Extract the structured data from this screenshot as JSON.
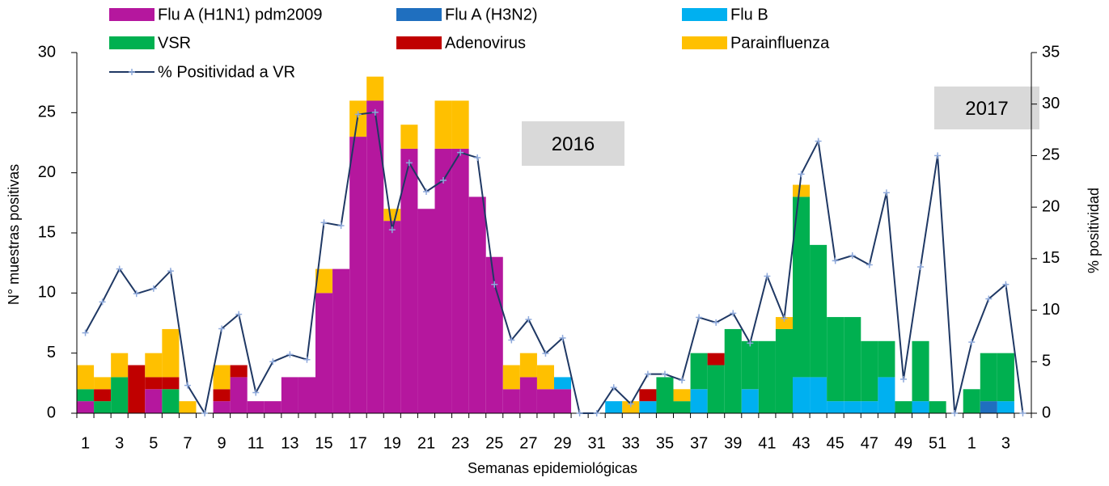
{
  "chart_data": {
    "type": "bar",
    "stacked": true,
    "x_label": "Semanas epidemiológicas",
    "y_label": "N° muestras positivas",
    "y2_label": "% positividad",
    "categories": [
      "1",
      null,
      "3",
      null,
      "5",
      null,
      "7",
      null,
      "9",
      null,
      "11",
      null,
      "13",
      null,
      "15",
      null,
      "17",
      null,
      "19",
      null,
      "21",
      null,
      "23",
      null,
      "25",
      null,
      "27",
      null,
      "29",
      null,
      "31",
      null,
      "33",
      null,
      "35",
      null,
      "37",
      null,
      "39",
      null,
      "41",
      null,
      "43",
      null,
      "45",
      null,
      "47",
      null,
      "49",
      null,
      "51",
      null,
      "1",
      null,
      "3",
      null
    ],
    "series": [
      {
        "name": "Flu A (H1N1) pdm2009",
        "color": "#B5179E",
        "values": [
          1,
          0,
          0,
          0,
          2,
          0,
          0,
          0,
          1,
          3,
          1,
          1,
          3,
          3,
          10,
          12,
          23,
          26,
          16,
          22,
          17,
          22,
          22,
          18,
          13,
          2,
          3,
          2,
          2,
          0,
          0,
          0,
          0,
          0,
          0,
          0,
          0,
          0,
          0,
          0,
          0,
          0,
          0,
          0,
          0,
          0,
          0,
          0,
          0,
          0,
          0,
          0,
          0,
          0,
          0,
          0
        ]
      },
      {
        "name": "Flu A (H3N2)",
        "color": "#1F6FBF",
        "values": [
          0,
          0,
          0,
          0,
          0,
          0,
          0,
          0,
          0,
          0,
          0,
          0,
          0,
          0,
          0,
          0,
          0,
          0,
          0,
          0,
          0,
          0,
          0,
          0,
          0,
          0,
          0,
          0,
          0,
          0,
          0,
          0,
          0,
          0,
          0,
          0,
          0,
          0,
          0,
          0,
          0,
          0,
          0,
          0,
          0,
          0,
          0,
          0,
          0,
          0,
          0,
          0,
          0,
          1,
          0,
          0
        ]
      },
      {
        "name": "Flu B",
        "color": "#00B0F0",
        "values": [
          0,
          0,
          0,
          0,
          0,
          0,
          0,
          0,
          0,
          0,
          0,
          0,
          0,
          0,
          0,
          0,
          0,
          0,
          0,
          0,
          0,
          0,
          0,
          0,
          0,
          0,
          0,
          0,
          1,
          0,
          0,
          1,
          0,
          1,
          0,
          0,
          2,
          0,
          0,
          2,
          0,
          0,
          3,
          3,
          1,
          1,
          1,
          3,
          0,
          1,
          0,
          0,
          0,
          0,
          1,
          0
        ]
      },
      {
        "name": "VSR",
        "color": "#00B050",
        "values": [
          1,
          1,
          3,
          0,
          0,
          2,
          0,
          0,
          0,
          0,
          0,
          0,
          0,
          0,
          0,
          0,
          0,
          0,
          0,
          0,
          0,
          0,
          0,
          0,
          0,
          0,
          0,
          0,
          0,
          0,
          0,
          0,
          0,
          0,
          3,
          1,
          3,
          4,
          7,
          4,
          6,
          7,
          15,
          11,
          7,
          7,
          5,
          3,
          1,
          5,
          1,
          0,
          2,
          4,
          4,
          0
        ]
      },
      {
        "name": "Adenovirus",
        "color": "#C00000",
        "values": [
          0,
          1,
          0,
          4,
          1,
          1,
          0,
          0,
          1,
          1,
          0,
          0,
          0,
          0,
          0,
          0,
          0,
          0,
          0,
          0,
          0,
          0,
          0,
          0,
          0,
          0,
          0,
          0,
          0,
          0,
          0,
          0,
          0,
          1,
          0,
          0,
          0,
          1,
          0,
          0,
          0,
          0,
          0,
          0,
          0,
          0,
          0,
          0,
          0,
          0,
          0,
          0,
          0,
          0,
          0,
          0
        ]
      },
      {
        "name": "Parainfluenza",
        "color": "#FFC000",
        "values": [
          2,
          1,
          2,
          0,
          2,
          4,
          1,
          0,
          2,
          0,
          0,
          0,
          0,
          0,
          2,
          0,
          3,
          2,
          1,
          2,
          0,
          4,
          4,
          0,
          0,
          2,
          2,
          2,
          0,
          0,
          0,
          0,
          1,
          0,
          0,
          1,
          0,
          0,
          0,
          0,
          0,
          1,
          1,
          0,
          0,
          0,
          0,
          0,
          0,
          0,
          0,
          0,
          0,
          0,
          0,
          0
        ]
      },
      {
        "name": "% Positividad a VR",
        "type": "line",
        "axis": "y2",
        "color": "#1F3864",
        "marker_color": "#8FAADC",
        "values": [
          7.8,
          10.8,
          14,
          11.6,
          12.1,
          13.8,
          2.7,
          0,
          8.2,
          9.6,
          2,
          5,
          5.7,
          5.2,
          18.5,
          18.2,
          29,
          29.2,
          17.8,
          24.3,
          21.5,
          22.6,
          25.3,
          24.8,
          12.5,
          7.1,
          9.1,
          5.8,
          7.3,
          0,
          0,
          2.5,
          0.9,
          3.8,
          3.8,
          3.2,
          9.3,
          8.8,
          9.7,
          6.8,
          13.3,
          9.2,
          23.2,
          26.4,
          14.8,
          15.3,
          14.4,
          21.4,
          3.3,
          14.2,
          25,
          0,
          6.9,
          11.1,
          12.5,
          0
        ]
      }
    ],
    "ylim": [
      0,
      30
    ],
    "yticks": [
      0,
      5,
      10,
      15,
      20,
      25,
      30
    ],
    "y2lim": [
      0,
      35
    ],
    "y2ticks": [
      0,
      5,
      10,
      15,
      20,
      25,
      30,
      35
    ],
    "annotations": [
      {
        "text": "2016"
      },
      {
        "text": "2017"
      }
    ]
  }
}
